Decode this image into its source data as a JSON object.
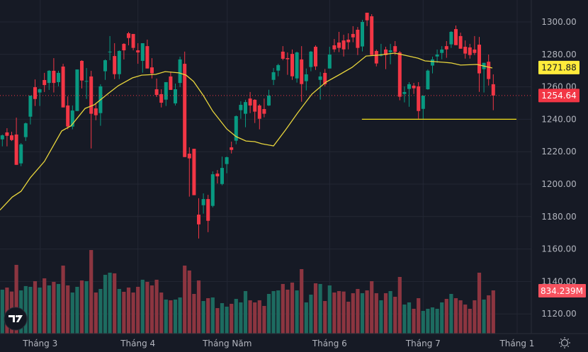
{
  "chart_data": {
    "type": "candlestick",
    "title": "",
    "ylim": [
      1105,
      1310
    ],
    "y_ticks": [
      "1300.00",
      "1280.00",
      "1260.00",
      "1240.00",
      "1220.00",
      "1200.00",
      "1180.00",
      "1160.00",
      "1140.00",
      "1120.00"
    ],
    "y_tick_values": [
      1300,
      1280,
      1260,
      1240,
      1220,
      1200,
      1180,
      1160,
      1140,
      1120
    ],
    "x_labels": [
      {
        "label": "Tháng 3",
        "bar": 8.1
      },
      {
        "label": "Tháng 4",
        "bar": 29
      },
      {
        "label": "Tháng Năm",
        "bar": 48.1
      },
      {
        "label": "Tháng 6",
        "bar": 70
      },
      {
        "label": "Tháng 7",
        "bar": 90
      },
      {
        "label": "Tháng 1",
        "bar": 110.1
      }
    ],
    "ohlc_fields": [
      "open",
      "high",
      "low",
      "close"
    ],
    "candles": [
      [
        1227.6,
        1230.6,
        1223.3,
        1230.1
      ],
      [
        1231.9,
        1234.5,
        1223.3,
        1229.8
      ],
      [
        1230.1,
        1232.3,
        1226.6,
        1227.2
      ],
      [
        1230.6,
        1241.0,
        1211.9,
        1211.9
      ],
      [
        1212.8,
        1225.3,
        1211.1,
        1224.5
      ],
      [
        1229.0,
        1238.0,
        1226.6,
        1237.5
      ],
      [
        1241.6,
        1254.6,
        1236.8,
        1254.6
      ],
      [
        1259.8,
        1264.6,
        1248.2,
        1252.5
      ],
      [
        1256.5,
        1259.0,
        1248.2,
        1258.5
      ],
      [
        1264.2,
        1268.6,
        1256.8,
        1261.1
      ],
      [
        1262.4,
        1270.3,
        1258.1,
        1269.9
      ],
      [
        1269.9,
        1277.7,
        1256.5,
        1262.4
      ],
      [
        1262.9,
        1269.9,
        1260.3,
        1268.6
      ],
      [
        1272.5,
        1274.2,
        1247.3,
        1247.3
      ],
      [
        1248.5,
        1254.1,
        1233.8,
        1235.5
      ],
      [
        1235.5,
        1248.5,
        1233.8,
        1245.4
      ],
      [
        1245.1,
        1270.7,
        1245.1,
        1270.7
      ],
      [
        1276.0,
        1276.4,
        1259.0,
        1263.9
      ],
      [
        1263.3,
        1271.6,
        1252.5,
        1263.6
      ],
      [
        1266.4,
        1269.9,
        1222.0,
        1243.4
      ],
      [
        1246.7,
        1249.8,
        1239.4,
        1242.5
      ],
      [
        1243.8,
        1261.6,
        1236.0,
        1260.3
      ],
      [
        1269.6,
        1276.9,
        1264.3,
        1276.4
      ],
      [
        1281.4,
        1291.3,
        1276.4,
        1281.7
      ],
      [
        1279.0,
        1286.9,
        1264.8,
        1267.8
      ],
      [
        1267.8,
        1282.5,
        1264.8,
        1282.1
      ],
      [
        1286.5,
        1286.9,
        1276.9,
        1282.5
      ],
      [
        1293.0,
        1293.9,
        1285.6,
        1290.1
      ],
      [
        1292.6,
        1292.6,
        1282.5,
        1284.0
      ],
      [
        1282.5,
        1286.9,
        1274.2,
        1281.2
      ],
      [
        1276.0,
        1286.9,
        1268.7,
        1286.9
      ],
      [
        1285.1,
        1289.1,
        1271.3,
        1271.3
      ],
      [
        1272.0,
        1277.7,
        1265.2,
        1268.3
      ],
      [
        1258.5,
        1265.1,
        1253.7,
        1255.0
      ],
      [
        1255.5,
        1258.5,
        1247.3,
        1250.2
      ],
      [
        1252.1,
        1262.9,
        1248.2,
        1262.9
      ],
      [
        1266.4,
        1269.4,
        1258.1,
        1258.1
      ],
      [
        1249.8,
        1262.0,
        1248.5,
        1258.5
      ],
      [
        1262.4,
        1278.6,
        1259.8,
        1276.9
      ],
      [
        1274.2,
        1281.7,
        1216.7,
        1216.7
      ],
      [
        1218.8,
        1222.7,
        1192.3,
        1215.9
      ],
      [
        1221.8,
        1221.8,
        1193.2,
        1193.2
      ],
      [
        1181.2,
        1191.3,
        1166.5,
        1175.2
      ],
      [
        1187.0,
        1194.3,
        1181.8,
        1190.8
      ],
      [
        1190.8,
        1193.4,
        1170.4,
        1177.4
      ],
      [
        1186.6,
        1207.9,
        1185.7,
        1206.1
      ],
      [
        1206.5,
        1208.7,
        1200.4,
        1204.8
      ],
      [
        1200.1,
        1217.0,
        1199.3,
        1210.0
      ],
      [
        1212.4,
        1217.0,
        1206.7,
        1216.6
      ],
      [
        1222.7,
        1226.2,
        1218.9,
        1221.1
      ],
      [
        1226.8,
        1242.4,
        1224.6,
        1241.9
      ],
      [
        1245.6,
        1251.1,
        1240.3,
        1248.9
      ],
      [
        1243.4,
        1252.0,
        1235.1,
        1250.6
      ],
      [
        1252.8,
        1256.8,
        1243.8,
        1248.5
      ],
      [
        1252.0,
        1252.4,
        1237.7,
        1244.7
      ],
      [
        1248.5,
        1249.3,
        1233.8,
        1240.3
      ],
      [
        1246.3,
        1252.8,
        1241.2,
        1243.4
      ],
      [
        1248.5,
        1258.2,
        1248.2,
        1254.6
      ],
      [
        1264.3,
        1271.6,
        1261.1,
        1269.0
      ],
      [
        1270.0,
        1274.2,
        1266.5,
        1273.4
      ],
      [
        1281.7,
        1285.1,
        1276.4,
        1277.3
      ],
      [
        1277.7,
        1281.2,
        1267.4,
        1277.0
      ],
      [
        1280.3,
        1283.0,
        1264.3,
        1266.5
      ],
      [
        1265.2,
        1281.7,
        1262.6,
        1281.2
      ],
      [
        1276.9,
        1285.1,
        1250.8,
        1261.7
      ],
      [
        1263.5,
        1271.3,
        1257.8,
        1267.7
      ],
      [
        1272.2,
        1282.1,
        1269.6,
        1281.7
      ],
      [
        1284.7,
        1285.6,
        1270.4,
        1272.6
      ],
      [
        1264.3,
        1269.1,
        1252.1,
        1266.4
      ],
      [
        1268.6,
        1271.0,
        1260.4,
        1261.6
      ],
      [
        1271.3,
        1284.7,
        1271.3,
        1279.9
      ],
      [
        1285.6,
        1289.5,
        1281.4,
        1283.1
      ],
      [
        1287.3,
        1293.9,
        1281.4,
        1284.0
      ],
      [
        1288.6,
        1292.1,
        1278.7,
        1283.1
      ],
      [
        1289.1,
        1293.0,
        1283.1,
        1287.5
      ],
      [
        1292.6,
        1297.4,
        1287.5,
        1290.5
      ],
      [
        1295.2,
        1296.9,
        1279.6,
        1284.0
      ],
      [
        1284.9,
        1301.3,
        1281.8,
        1300.0
      ],
      [
        1305.7,
        1305.7,
        1297.5,
        1301.0
      ],
      [
        1303.5,
        1304.8,
        1279.6,
        1279.6
      ],
      [
        1282.1,
        1283.0,
        1272.6,
        1274.4
      ],
      [
        1279.2,
        1286.5,
        1278.7,
        1279.6
      ],
      [
        1283.0,
        1284.7,
        1270.9,
        1279.6
      ],
      [
        1281.4,
        1286.5,
        1273.9,
        1282.5
      ],
      [
        1285.1,
        1288.2,
        1279.6,
        1281.5
      ],
      [
        1281.2,
        1282.1,
        1251.7,
        1253.9
      ],
      [
        1255.6,
        1260.3,
        1250.4,
        1256.8
      ],
      [
        1258.7,
        1262.9,
        1247.7,
        1261.6
      ],
      [
        1260.7,
        1262.4,
        1255.6,
        1259.1
      ],
      [
        1260.3,
        1262.9,
        1240.3,
        1245.1
      ],
      [
        1246.4,
        1254.6,
        1240.3,
        1254.6
      ],
      [
        1258.5,
        1270.7,
        1258.2,
        1270.0
      ],
      [
        1273.1,
        1278.6,
        1268.3,
        1276.9
      ],
      [
        1278.7,
        1283.0,
        1274.8,
        1279.9
      ],
      [
        1280.9,
        1285.1,
        1277.0,
        1283.0
      ],
      [
        1285.1,
        1288.2,
        1277.9,
        1283.1
      ],
      [
        1286.2,
        1294.3,
        1284.0,
        1293.9
      ],
      [
        1295.6,
        1297.8,
        1285.7,
        1285.7
      ],
      [
        1291.3,
        1293.4,
        1283.5,
        1283.5
      ],
      [
        1284.7,
        1288.6,
        1277.4,
        1280.5
      ],
      [
        1284.3,
        1286.5,
        1277.4,
        1279.6
      ],
      [
        1283.0,
        1291.3,
        1279.6,
        1280.9
      ],
      [
        1286.0,
        1290.8,
        1256.9,
        1268.3
      ],
      [
        1270.9,
        1274.8,
        1256.5,
        1274.8
      ],
      [
        1275.5,
        1279.9,
        1260.8,
        1264.8
      ],
      [
        1261.6,
        1267.7,
        1245.6,
        1254.64
      ]
    ],
    "volume_unit": "M",
    "volumes": [
      848,
      889,
      812,
      1327,
      834,
      917,
      903,
      1012,
      889,
      1067,
      930,
      999,
      958,
      1313,
      930,
      793,
      903,
      1026,
      1012,
      1614,
      793,
      862,
      1135,
      1176,
      1163,
      862,
      807,
      889,
      793,
      903,
      1040,
      999,
      930,
      1040,
      793,
      657,
      643,
      657,
      698,
      1313,
      1218,
      766,
      1026,
      629,
      684,
      698,
      492,
      588,
      520,
      575,
      670,
      602,
      821,
      643,
      602,
      643,
      534,
      766,
      821,
      834,
      958,
      848,
      985,
      834,
      1245,
      602,
      752,
      971,
      958,
      629,
      930,
      793,
      821,
      812,
      616,
      780,
      862,
      780,
      834,
      1012,
      780,
      643,
      780,
      821,
      711,
      1094,
      561,
      602,
      479,
      684,
      438,
      479,
      506,
      479,
      602,
      670,
      766,
      684,
      643,
      561,
      479,
      643,
      1176,
      657,
      739,
      834.239
    ],
    "moving_average": {
      "points": [
        [
          -0.5,
          1184
        ],
        [
          2.1,
          1192
        ],
        [
          4.0,
          1195.6
        ],
        [
          6.0,
          1204
        ],
        [
          9.0,
          1214
        ],
        [
          12.7,
          1232.8
        ],
        [
          14.7,
          1236
        ],
        [
          17.7,
          1246.7
        ],
        [
          19.7,
          1249
        ],
        [
          22.7,
          1256
        ],
        [
          24.8,
          1260.7
        ],
        [
          27.8,
          1265.5
        ],
        [
          29.8,
          1267.2
        ],
        [
          32.8,
          1267.7
        ],
        [
          34.8,
          1269.4
        ],
        [
          37.8,
          1268.6
        ],
        [
          39.3,
          1267.2
        ],
        [
          40.9,
          1263.3
        ],
        [
          43.0,
          1254.6
        ],
        [
          45.0,
          1245
        ],
        [
          48.0,
          1234
        ],
        [
          50.0,
          1229.3
        ],
        [
          52.1,
          1226.6
        ],
        [
          54.0,
          1226.2
        ],
        [
          55.5,
          1224.9
        ],
        [
          58.0,
          1223.6
        ],
        [
          60.6,
          1233.6
        ],
        [
          63.1,
          1243.7
        ],
        [
          66.2,
          1255.5
        ],
        [
          69.2,
          1262.9
        ],
        [
          72.2,
          1267.7
        ],
        [
          74.8,
          1272
        ],
        [
          77.8,
          1279
        ],
        [
          80.3,
          1279.5
        ],
        [
          83.9,
          1280.8
        ],
        [
          85.4,
          1279.9
        ],
        [
          88.9,
          1277.7
        ],
        [
          90.4,
          1276
        ],
        [
          94.5,
          1275.1
        ],
        [
          96.0,
          1274.7
        ],
        [
          98.0,
          1273.4
        ],
        [
          101.5,
          1273.8
        ],
        [
          104.8,
          1271.6
        ]
      ],
      "last_value_label": "1271.88"
    },
    "horizontal_line": {
      "price": 1240,
      "start_bar": 76.9
    },
    "last_price_label": "1254.64",
    "last_price": 1254.64,
    "volume_label": "834.239M",
    "colors": {
      "background": "#161a25",
      "grid": "#232734",
      "up": "#089981",
      "down": "#f23645",
      "volume_up": "#1d6b60",
      "volume_down": "#8c3540",
      "ma": "#e8d53c",
      "hline": "#f5e21b",
      "last_price": "#f23645",
      "volume_tag": "#f7525f",
      "ma_tag": "#ffeb3b"
    }
  },
  "logo_text": "TV"
}
